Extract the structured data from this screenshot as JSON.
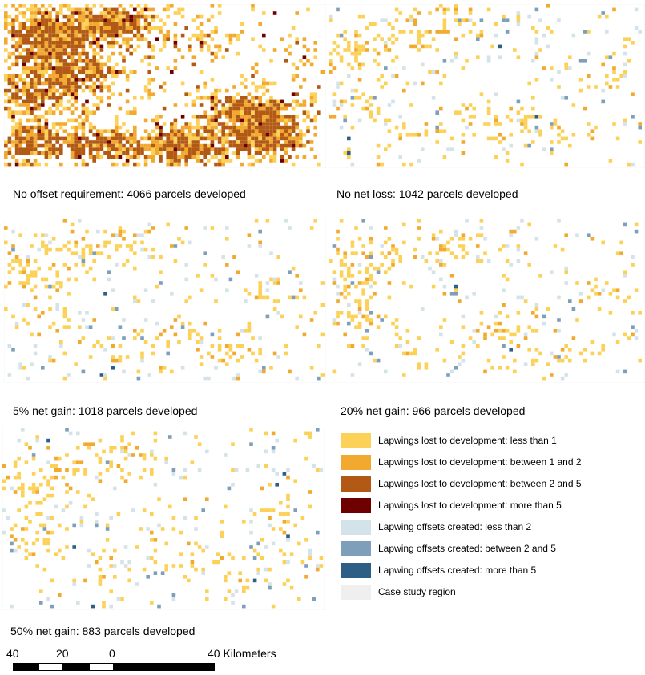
{
  "colors": {
    "lost_lt1": "#fcd157",
    "lost_1_2": "#f2a92f",
    "lost_2_5": "#b25a15",
    "lost_gt5": "#6e0000",
    "off_lt2": "#d4e3ea",
    "off_2_5": "#7d9fba",
    "off_gt5": "#2d5f86",
    "region": "#efefef"
  },
  "panels": [
    {
      "id": "no-offset",
      "caption": "No offset requirement: 4066 parcels developed",
      "parcels": 4066
    },
    {
      "id": "no-net-loss",
      "caption": "No net loss: 1042 parcels developed",
      "parcels": 1042
    },
    {
      "id": "net-gain-5",
      "caption": "5% net gain: 1018 parcels developed",
      "parcels": 1018
    },
    {
      "id": "net-gain-20",
      "caption": "20% net gain: 966 parcels developed",
      "parcels": 966
    },
    {
      "id": "net-gain-50",
      "caption": "50% net gain: 883 parcels developed",
      "parcels": 883
    }
  ],
  "legend": [
    {
      "label": "Lapwings lost to development: less than 1",
      "color": "#fcd157"
    },
    {
      "label": "Lapwings lost to development: between 1 and 2",
      "color": "#f2a92f"
    },
    {
      "label": "Lapwings lost to development: between 2 and 5",
      "color": "#b25a15"
    },
    {
      "label": "Lapwings lost to development: more than 5",
      "color": "#6e0000"
    },
    {
      "label": "Lapwing offsets created: less than 2",
      "color": "#d4e3ea"
    },
    {
      "label": "Lapwing offsets created: between 2 and 5",
      "color": "#7d9fba"
    },
    {
      "label": "Lapwing offsets created: more than 5",
      "color": "#2d5f86"
    },
    {
      "label": "Case study region",
      "color": "#efefef"
    }
  ],
  "scalebar": {
    "labels": [
      "40",
      "20",
      "0",
      "40 Kilometers"
    ]
  }
}
